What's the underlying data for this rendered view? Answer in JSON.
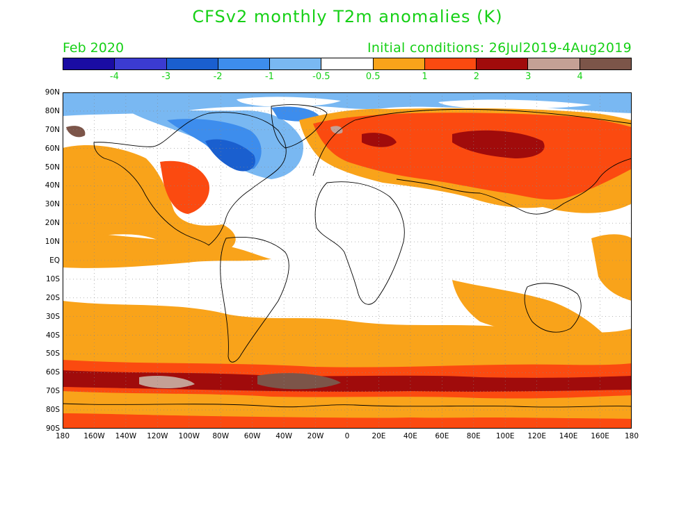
{
  "header": {
    "title": "CFSv2 monthly T2m anomalies (K)",
    "month": "Feb 2020",
    "initial_conditions": "Initial conditions: 26Jul2019-4Aug2019"
  },
  "colorbar": {
    "colors": [
      "#1a0ca3",
      "#3b3bd1",
      "#1a5fcf",
      "#3d8ded",
      "#79b8f2",
      "#ffffff",
      "#f9a31a",
      "#fb4a10",
      "#a00b0b",
      "#c4a095",
      "#7c5549"
    ],
    "labels": [
      "-4",
      "-3",
      "-2",
      "-1",
      "-0.5",
      "0.5",
      "1",
      "2",
      "3",
      "4"
    ]
  },
  "axes": {
    "lat_labels": [
      "90N",
      "80N",
      "70N",
      "60N",
      "50N",
      "40N",
      "30N",
      "20N",
      "10N",
      "EQ",
      "10S",
      "20S",
      "30S",
      "40S",
      "50S",
      "60S",
      "70S",
      "80S",
      "90S"
    ],
    "lon_labels": [
      "180",
      "160W",
      "140W",
      "120W",
      "100W",
      "80W",
      "60W",
      "40W",
      "20W",
      "0",
      "20E",
      "40E",
      "60E",
      "80E",
      "100E",
      "120E",
      "140E",
      "160E",
      "180"
    ]
  }
}
